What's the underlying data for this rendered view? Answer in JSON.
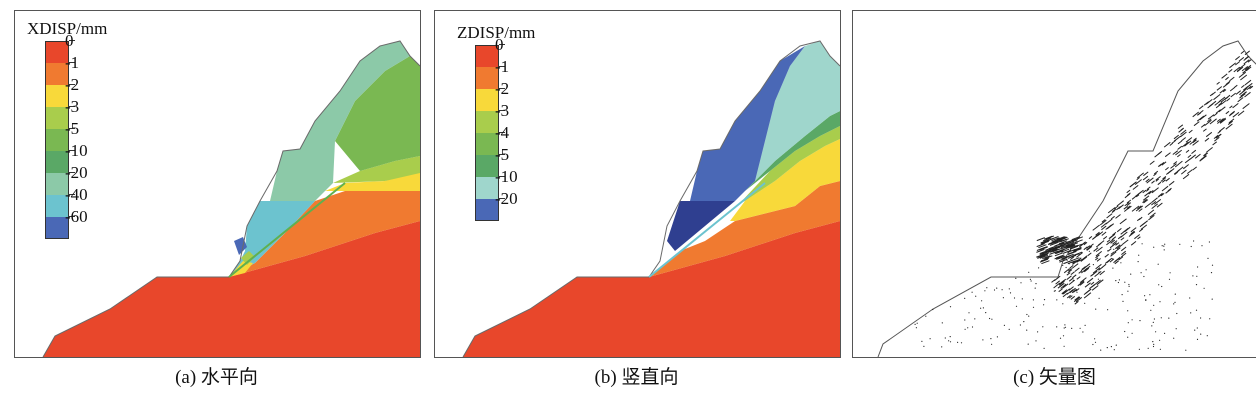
{
  "panels": [
    {
      "caption": "(a) 水平向",
      "legend": {
        "title": "XDISP/mm",
        "items": [
          {
            "label": "0",
            "color": "#e8472b"
          },
          {
            "label": "-1",
            "color": "#f07a30"
          },
          {
            "label": "-2",
            "color": "#f8d93a"
          },
          {
            "label": "-3",
            "color": "#a9cd4c"
          },
          {
            "label": "-5",
            "color": "#7ab852"
          },
          {
            "label": "-10",
            "color": "#5aa866"
          },
          {
            "label": "-20",
            "color": "#8cc9a8"
          },
          {
            "label": "-40",
            "color": "#6cc3cf"
          },
          {
            "label": "-60",
            "color": "#4a68b6"
          }
        ]
      }
    },
    {
      "caption": "(b) 竖直向",
      "legend": {
        "title": "ZDISP/mm",
        "items": [
          {
            "label": "0",
            "color": "#e8472b"
          },
          {
            "label": "-1",
            "color": "#f07a30"
          },
          {
            "label": "-2",
            "color": "#f8d93a"
          },
          {
            "label": "-3",
            "color": "#a9cd4c"
          },
          {
            "label": "-4",
            "color": "#7ab852"
          },
          {
            "label": "-5",
            "color": "#5aa866"
          },
          {
            "label": "-10",
            "color": "#9fd6cc"
          },
          {
            "label": "-20",
            "color": "#4a68b6"
          }
        ]
      }
    },
    {
      "caption": "(c) 矢量图"
    }
  ]
}
